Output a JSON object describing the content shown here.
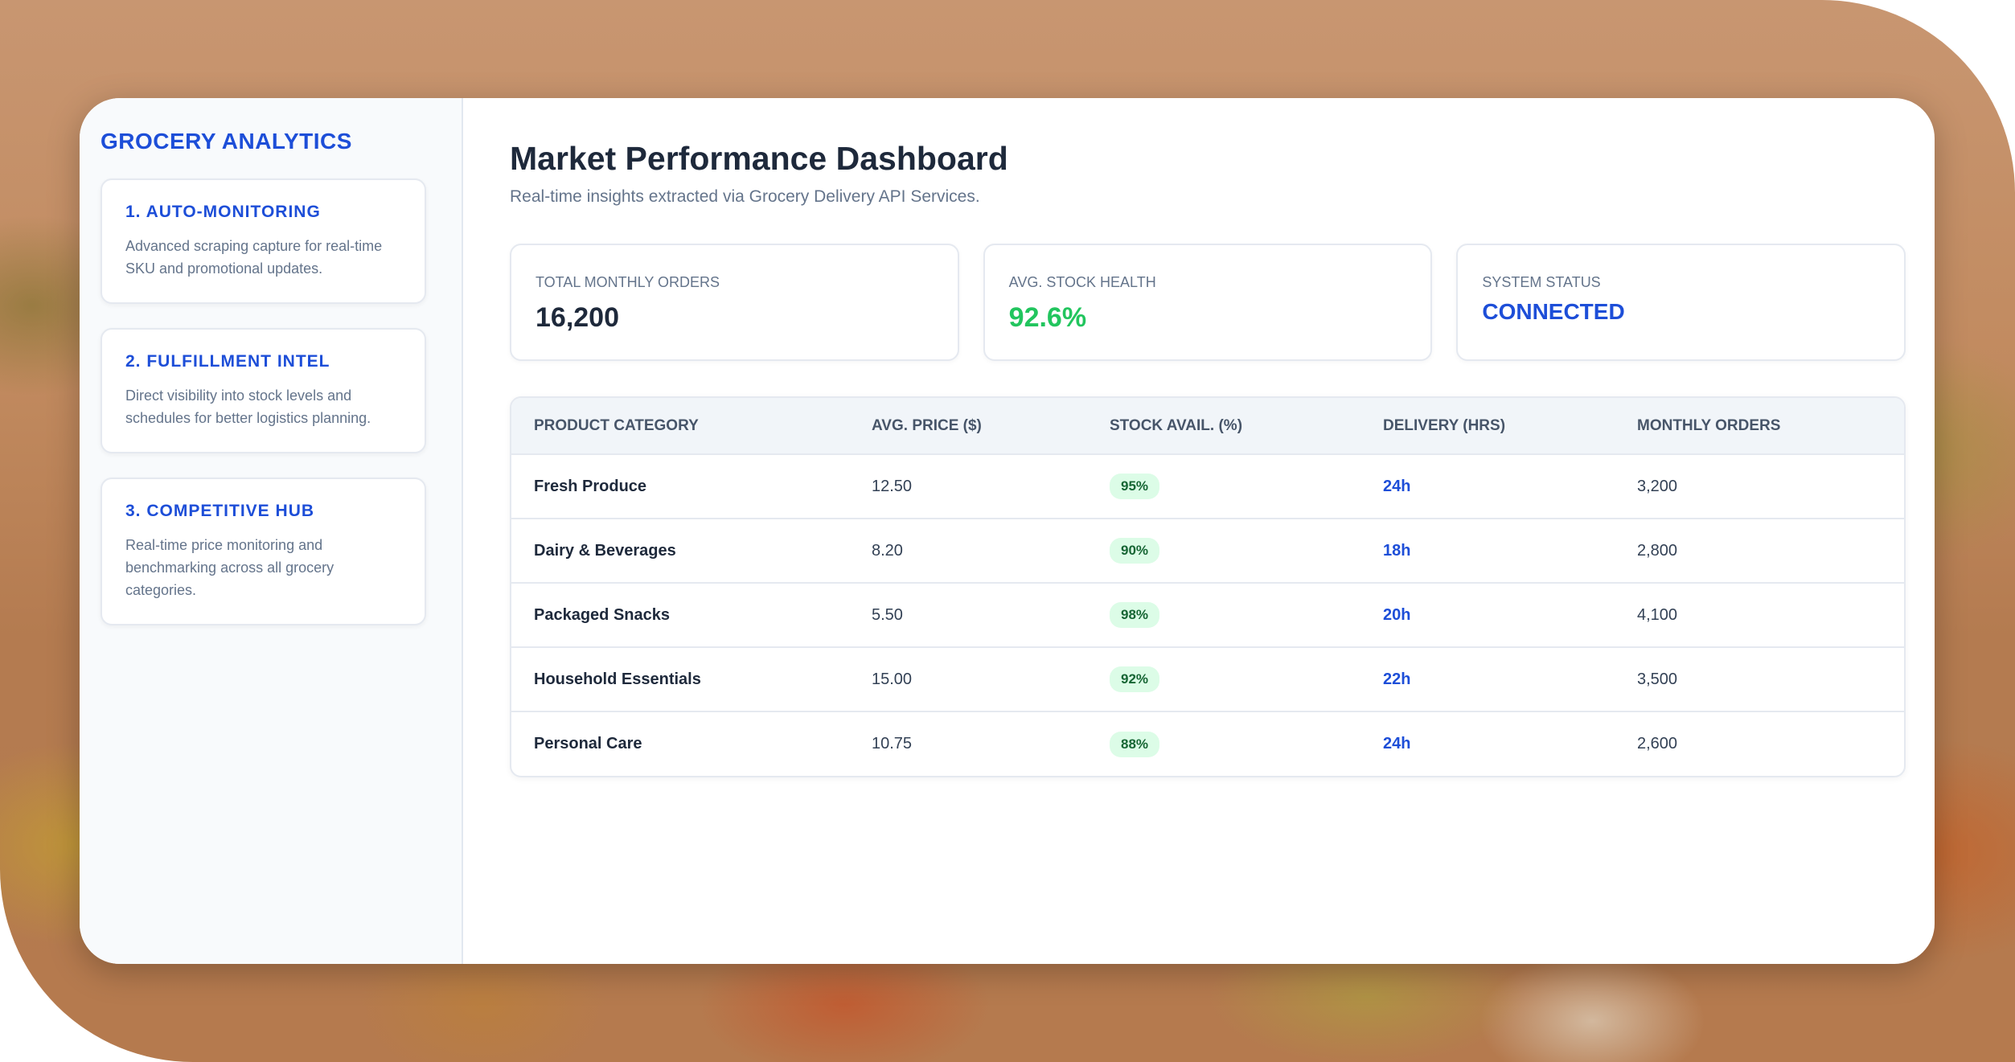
{
  "sidebar": {
    "brand": "GROCERY ANALYTICS",
    "features": [
      {
        "title": "1. AUTO-MONITORING",
        "desc": "Advanced scraping capture for real-time SKU and promotional updates."
      },
      {
        "title": "2. FULFILLMENT INTEL",
        "desc": "Direct visibility into stock levels and schedules for better logistics planning."
      },
      {
        "title": "3. COMPETITIVE HUB",
        "desc": "Real-time price monitoring and benchmarking across all grocery categories."
      }
    ]
  },
  "header": {
    "title": "Market Performance Dashboard",
    "subtitle": "Real-time insights extracted via Grocery Delivery API Services."
  },
  "stats": {
    "orders": {
      "label": "TOTAL MONTHLY ORDERS",
      "value": "16,200"
    },
    "stock": {
      "label": "AVG. STOCK HEALTH",
      "value": "92.6%"
    },
    "status": {
      "label": "SYSTEM STATUS",
      "value": "CONNECTED"
    }
  },
  "table": {
    "headers": [
      "PRODUCT CATEGORY",
      "AVG. PRICE ($)",
      "STOCK AVAIL. (%)",
      "DELIVERY (HRS)",
      "MONTHLY ORDERS"
    ],
    "rows": [
      {
        "category": "Fresh Produce",
        "price": "12.50",
        "stock": "95%",
        "delivery": "24h",
        "orders": "3,200"
      },
      {
        "category": "Dairy & Beverages",
        "price": "8.20",
        "stock": "90%",
        "delivery": "18h",
        "orders": "2,800"
      },
      {
        "category": "Packaged Snacks",
        "price": "5.50",
        "stock": "98%",
        "delivery": "20h",
        "orders": "4,100"
      },
      {
        "category": "Household Essentials",
        "price": "15.00",
        "stock": "92%",
        "delivery": "22h",
        "orders": "3,500"
      },
      {
        "category": "Personal Care",
        "price": "10.75",
        "stock": "88%",
        "delivery": "24h",
        "orders": "2,600"
      }
    ]
  },
  "colors": {
    "accent": "#1d4ed8",
    "positive": "#22c55e",
    "pill_bg": "#dcfce7"
  }
}
